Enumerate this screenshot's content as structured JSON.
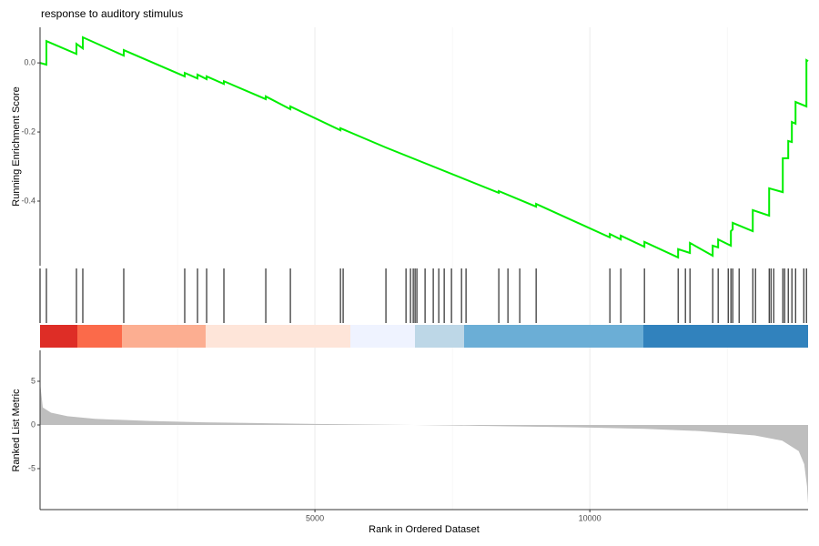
{
  "chart_data": [
    {
      "type": "line",
      "title": "response to auditory stimulus",
      "ylabel": "Running Enrichment Score",
      "x": [
        0,
        116,
        116,
        662,
        662,
        778,
        778,
        1523,
        1523,
        2632,
        2632,
        2864,
        2864,
        3030,
        3030,
        3344,
        3344,
        4106,
        4106,
        4553,
        4553,
        5464,
        5464,
        6291,
        8344,
        8344,
        9023,
        9023,
        10364,
        10364,
        10563,
        10563,
        10993,
        10993,
        11606,
        11606,
        11821,
        11821,
        12235,
        12235,
        12334,
        12334,
        12566,
        12566,
        12599,
        12599,
        12964,
        12964,
        13262,
        13262,
        13510,
        13510,
        13609,
        13609,
        13675,
        13675,
        13742,
        13742,
        13940,
        13940,
        13970
      ],
      "series": [
        {
          "name": "Running Enrichment Score",
          "color": "#00ee00",
          "values": [
            0,
            -0.005,
            0.063,
            0.026,
            0.055,
            0.042,
            0.074,
            0.021,
            0.037,
            -0.039,
            -0.029,
            -0.045,
            -0.034,
            -0.047,
            -0.039,
            -0.061,
            -0.053,
            -0.105,
            -0.097,
            -0.134,
            -0.126,
            -0.195,
            -0.189,
            -0.245,
            -0.376,
            -0.371,
            -0.416,
            -0.408,
            -0.505,
            -0.495,
            -0.511,
            -0.5,
            -0.532,
            -0.518,
            -0.563,
            -0.539,
            -0.55,
            -0.521,
            -0.558,
            -0.529,
            -0.534,
            -0.511,
            -0.529,
            -0.487,
            -0.482,
            -0.463,
            -0.487,
            -0.426,
            -0.442,
            -0.363,
            -0.374,
            -0.276,
            -0.276,
            -0.226,
            -0.229,
            -0.171,
            -0.176,
            -0.113,
            -0.126,
            0.008,
            0.005
          ]
        }
      ],
      "xlim": [
        0,
        13970
      ],
      "ylim": [
        -0.587,
        0.103
      ],
      "yticks": [
        -0.4,
        -0.2,
        {
          "value": 0,
          "label": "0.0"
        }
      ]
    },
    {
      "type": "rug",
      "color": "#000000",
      "x": [
        0,
        116,
        662,
        778,
        1523,
        2632,
        2864,
        3030,
        3344,
        4106,
        4553,
        5464,
        5513,
        6291,
        6656,
        6738,
        6788,
        6821,
        6854,
        7003,
        7152,
        7252,
        7351,
        7483,
        7666,
        7748,
        8344,
        8510,
        8725,
        9023,
        10364,
        10563,
        10993,
        11606,
        11738,
        11821,
        12235,
        12334,
        12517,
        12566,
        12599,
        12715,
        12964,
        13013,
        13262,
        13295,
        13344,
        13510,
        13543,
        13609,
        13675,
        13742,
        13891,
        13940
      ],
      "xlim": [
        0,
        13970
      ]
    },
    {
      "type": "area",
      "ylabel": "Ranked List Metric",
      "xlabel": "Rank in Ordered Dataset",
      "x": [
        0,
        50,
        200,
        500,
        1000,
        2000,
        3000,
        5000,
        6800,
        8000,
        10000,
        11000,
        12000,
        13000,
        13500,
        13800,
        13900,
        13950,
        13970
      ],
      "series": [
        {
          "name": "Ranked List Metric",
          "color": "#bebebe",
          "values": [
            4.9,
            2.0,
            1.4,
            1.0,
            0.7,
            0.45,
            0.3,
            0.12,
            0,
            -0.1,
            -0.3,
            -0.45,
            -0.7,
            -1.2,
            -1.8,
            -3,
            -4.5,
            -7,
            -9
          ]
        }
      ],
      "xlim": [
        0,
        13970
      ],
      "ylim": [
        -9.69,
        8.54
      ],
      "yticks": [
        -5,
        0,
        5
      ],
      "xticks": [
        5000,
        10000
      ],
      "grid": true
    }
  ]
}
